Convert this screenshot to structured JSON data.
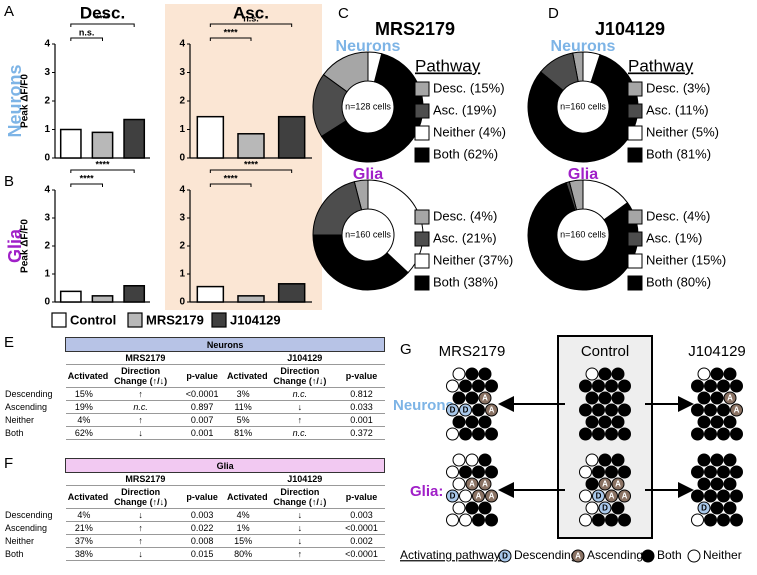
{
  "figure_bars": {
    "panels": [
      "A",
      "B"
    ],
    "rows": [
      "Neurons",
      "Glia"
    ],
    "row_colors": [
      "#7db4e6",
      "#a020c8"
    ]
  },
  "chart_data": [
    {
      "type": "bar",
      "title": "Desc.",
      "y_label": "Peak ΔF/F0",
      "categories": [
        "Control",
        "MRS2179",
        "J104129"
      ],
      "colors": [
        "#ffffff",
        "#b8b8b8",
        "#404040"
      ],
      "values": [
        1.0,
        0.9,
        1.35
      ],
      "ylim": [
        0,
        4
      ],
      "yticks": [
        0,
        1,
        2,
        3,
        4
      ],
      "annotations": [
        {
          "label": "****",
          "pair": [
            "Control",
            "J104129"
          ]
        },
        {
          "label": "n.s.",
          "pair": [
            "Control",
            "MRS2179"
          ]
        }
      ]
    },
    {
      "type": "bar",
      "title": "Asc.",
      "background": "#fbe6d4",
      "categories": [
        "Control",
        "MRS2179",
        "J104129"
      ],
      "colors": [
        "#ffffff",
        "#b8b8b8",
        "#404040"
      ],
      "values": [
        1.45,
        0.85,
        1.45
      ],
      "ylim": [
        0,
        4
      ],
      "yticks": [
        0,
        1,
        2,
        3,
        4
      ],
      "annotations": [
        {
          "label": "n.s.",
          "pair": [
            "Control",
            "J104129"
          ]
        },
        {
          "label": "****",
          "pair": [
            "Control",
            "MRS2179"
          ]
        }
      ]
    },
    {
      "type": "bar",
      "y_label": "Peak ΔF/F0",
      "categories": [
        "Control",
        "MRS2179",
        "J104129"
      ],
      "colors": [
        "#ffffff",
        "#b8b8b8",
        "#404040"
      ],
      "values": [
        0.38,
        0.22,
        0.58
      ],
      "ylim": [
        0,
        4
      ],
      "yticks": [
        0,
        1,
        2,
        3,
        4
      ],
      "annotations": [
        {
          "label": "****",
          "pair": [
            "Control",
            "J104129"
          ]
        },
        {
          "label": "****",
          "pair": [
            "Control",
            "MRS2179"
          ]
        }
      ]
    },
    {
      "type": "bar",
      "background": "#fbe6d4",
      "categories": [
        "Control",
        "MRS2179",
        "J104129"
      ],
      "colors": [
        "#ffffff",
        "#b8b8b8",
        "#404040"
      ],
      "values": [
        0.55,
        0.22,
        0.65
      ],
      "ylim": [
        0,
        4
      ],
      "yticks": [
        0,
        1,
        2,
        3,
        4
      ],
      "annotations": [
        {
          "label": "****",
          "pair": [
            "Control",
            "J104129"
          ]
        },
        {
          "label": "****",
          "pair": [
            "Control",
            "MRS2179"
          ]
        }
      ]
    },
    {
      "type": "pie",
      "title": "Neurons",
      "title_color": "#7db4e6",
      "center_label": "n=128 cells",
      "values": [
        15,
        19,
        4,
        62
      ],
      "value_labels": [
        "Desc. (15%)",
        "Asc. (19%)",
        "Neither (4%)",
        "Both (62%)"
      ],
      "colors": [
        "#a6a6a6",
        "#4d4d4d",
        "#ffffff",
        "#000000"
      ]
    },
    {
      "type": "pie",
      "title": "Glia",
      "title_color": "#a020c8",
      "center_label": "n=160 cells",
      "values": [
        4,
        21,
        37,
        38
      ],
      "value_labels": [
        "Desc. (4%)",
        "Asc. (21%)",
        "Neither (37%)",
        "Both (38%)"
      ],
      "colors": [
        "#a6a6a6",
        "#4d4d4d",
        "#ffffff",
        "#000000"
      ]
    },
    {
      "type": "pie",
      "title": "Neurons",
      "title_color": "#7db4e6",
      "center_label": "n=160 cells",
      "values": [
        3,
        11,
        5,
        81
      ],
      "value_labels": [
        "Desc. (3%)",
        "Asc. (11%)",
        "Neither (5%)",
        "Both (81%)"
      ],
      "colors": [
        "#a6a6a6",
        "#4d4d4d",
        "#ffffff",
        "#000000"
      ]
    },
    {
      "type": "pie",
      "title": "Glia",
      "title_color": "#a020c8",
      "center_label": "n=160 cells",
      "values": [
        4,
        1,
        15,
        80
      ],
      "value_labels": [
        "Desc. (4%)",
        "Asc. (1%)",
        "Neither (15%)",
        "Both (80%)"
      ],
      "colors": [
        "#a6a6a6",
        "#4d4d4d",
        "#ffffff",
        "#000000"
      ]
    }
  ],
  "figure_pies": {
    "columns": [
      {
        "panel": "C",
        "title": "MRS2179"
      },
      {
        "panel": "D",
        "title": "J104129"
      }
    ],
    "legend_title": "Pathway"
  },
  "tables": [
    {
      "panel": "E",
      "title": "Neurons",
      "header_color": "#b7c3e6",
      "groups": [
        "MRS2179",
        "J104129"
      ],
      "columns": [
        "Activated",
        "Direction Change (↑/↓)",
        "p-value",
        "Activated",
        "Direction Change (↑/↓)",
        "p-value"
      ],
      "rows": [
        [
          "Descending",
          "15%",
          "↑",
          "<0.0001",
          "3%",
          "n.c.",
          "0.812"
        ],
        [
          "Ascending",
          "19%",
          "n.c.",
          "0.897",
          "11%",
          "↓",
          "0.033"
        ],
        [
          "Neither",
          "4%",
          "↑",
          "0.007",
          "5%",
          "↑",
          "0.001"
        ],
        [
          "Both",
          "62%",
          "↓",
          "0.001",
          "81%",
          "n.c.",
          "0.372"
        ]
      ]
    },
    {
      "panel": "F",
      "title": "Glia",
      "header_color": "#f2c9f2",
      "groups": [
        "MRS2179",
        "J104129"
      ],
      "columns": [
        "Activated",
        "Direction Change (↑/↓)",
        "p-value",
        "Activated",
        "Direction Change (↑/↓)",
        "p-value"
      ],
      "rows": [
        [
          "Descending",
          "4%",
          "↓",
          "0.003",
          "4%",
          "↓",
          "0.003"
        ],
        [
          "Ascending",
          "21%",
          "↑",
          "0.022",
          "1%",
          "↓",
          "<0.0001"
        ],
        [
          "Neither",
          "37%",
          "↑",
          "0.008",
          "15%",
          "↓",
          "0.002"
        ],
        [
          "Both",
          "38%",
          "↓",
          "0.015",
          "80%",
          "↑",
          "<0.0001"
        ]
      ]
    }
  ],
  "diagram": {
    "panel": "G",
    "columns": [
      "MRS2179",
      "Control",
      "J104129"
    ],
    "rows": [
      "Neurons:",
      "Glia:"
    ],
    "legend_title": "Activating pathway:",
    "legend": [
      {
        "symbol": "D",
        "label": "Descending"
      },
      {
        "symbol": "A",
        "label": "Ascending"
      },
      {
        "label": "Both"
      },
      {
        "label": "Neither"
      }
    ]
  }
}
